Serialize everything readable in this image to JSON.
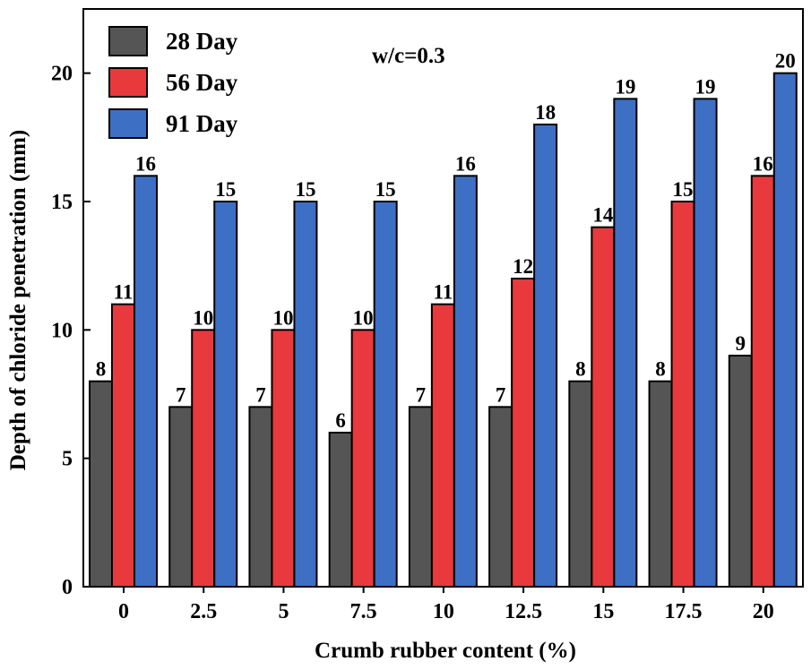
{
  "chart_data": {
    "type": "bar",
    "title": "",
    "annotation": "w/c=0.3",
    "xlabel": "Crumb rubber content (%)",
    "ylabel": "Depth of chloride penetration (mm)",
    "ylim": [
      0,
      22.5
    ],
    "yticks": [
      "0",
      "5",
      "10",
      "15",
      "20"
    ],
    "grid": false,
    "legend_position": "top-left",
    "categories": [
      "0",
      "2.5",
      "5",
      "7.5",
      "10",
      "12.5",
      "15",
      "17.5",
      "20"
    ],
    "series": [
      {
        "name": "28 Day",
        "color": "#555555",
        "values": [
          8,
          7,
          7,
          6,
          7,
          7,
          8,
          8,
          9
        ]
      },
      {
        "name": "56 Day",
        "color": "#e8393d",
        "values": [
          11,
          10,
          10,
          10,
          11,
          12,
          14,
          15,
          16
        ]
      },
      {
        "name": "91 Day",
        "color": "#3d6fc4",
        "values": [
          16,
          15,
          15,
          15,
          16,
          18,
          19,
          19,
          20
        ]
      }
    ]
  }
}
